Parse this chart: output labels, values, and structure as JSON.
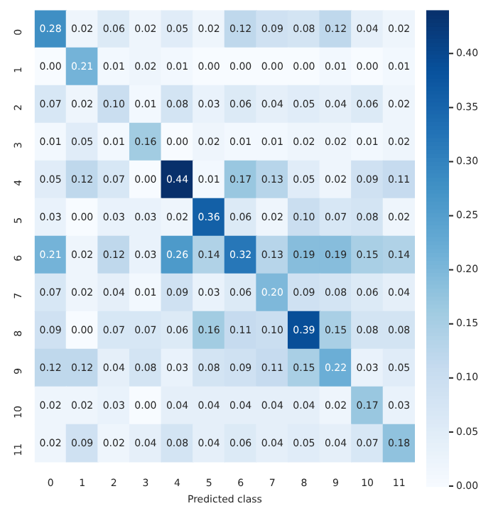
{
  "chart_data": {
    "type": "heatmap",
    "xlabel": "Predicted class",
    "categories": [
      "0",
      "1",
      "2",
      "3",
      "4",
      "5",
      "6",
      "7",
      "8",
      "9",
      "10",
      "11"
    ],
    "y_categories": [
      "0",
      "1",
      "2",
      "3",
      "4",
      "5",
      "6",
      "7",
      "8",
      "9",
      "10",
      "11"
    ],
    "cells": [
      [
        0.28,
        0.02,
        0.06,
        0.02,
        0.05,
        0.02,
        0.12,
        0.09,
        0.08,
        0.12,
        0.04,
        0.02
      ],
      [
        0.0,
        0.21,
        0.01,
        0.02,
        0.01,
        0.0,
        0.0,
        0.0,
        0.0,
        0.01,
        0.0,
        0.01
      ],
      [
        0.07,
        0.02,
        0.1,
        0.01,
        0.08,
        0.03,
        0.06,
        0.04,
        0.05,
        0.04,
        0.06,
        0.02
      ],
      [
        0.01,
        0.05,
        0.01,
        0.16,
        0.0,
        0.02,
        0.01,
        0.01,
        0.02,
        0.02,
        0.01,
        0.02
      ],
      [
        0.05,
        0.12,
        0.07,
        0.0,
        0.44,
        0.01,
        0.17,
        0.13,
        0.05,
        0.02,
        0.09,
        0.11
      ],
      [
        0.03,
        0.0,
        0.03,
        0.03,
        0.02,
        0.36,
        0.06,
        0.02,
        0.1,
        0.07,
        0.08,
        0.02
      ],
      [
        0.21,
        0.02,
        0.12,
        0.03,
        0.26,
        0.14,
        0.32,
        0.13,
        0.19,
        0.19,
        0.15,
        0.14
      ],
      [
        0.07,
        0.02,
        0.04,
        0.01,
        0.09,
        0.03,
        0.06,
        0.2,
        0.09,
        0.08,
        0.06,
        0.04
      ],
      [
        0.09,
        0.0,
        0.07,
        0.07,
        0.06,
        0.16,
        0.11,
        0.1,
        0.39,
        0.15,
        0.08,
        0.08
      ],
      [
        0.12,
        0.12,
        0.04,
        0.08,
        0.03,
        0.08,
        0.09,
        0.11,
        0.15,
        0.22,
        0.03,
        0.05
      ],
      [
        0.02,
        0.02,
        0.03,
        0.0,
        0.04,
        0.04,
        0.04,
        0.04,
        0.04,
        0.02,
        0.17,
        0.03
      ],
      [
        0.02,
        0.09,
        0.02,
        0.04,
        0.08,
        0.04,
        0.06,
        0.04,
        0.05,
        0.04,
        0.07,
        0.18
      ]
    ],
    "cell_labels": [
      [
        "0.28",
        "0.02",
        "0.06",
        "0.02",
        "0.05",
        "0.02",
        "0.12",
        "0.09",
        "0.08",
        "0.12",
        "0.04",
        "0.02"
      ],
      [
        "0.00",
        "0.21",
        "0.01",
        "0.02",
        "0.01",
        "0.00",
        "0.00",
        "0.00",
        "0.00",
        "0.01",
        "0.00",
        "0.01"
      ],
      [
        "0.07",
        "0.02",
        "0.10",
        "0.01",
        "0.08",
        "0.03",
        "0.06",
        "0.04",
        "0.05",
        "0.04",
        "0.06",
        "0.02"
      ],
      [
        "0.01",
        "0.05",
        "0.01",
        "0.16",
        "0.00",
        "0.02",
        "0.01",
        "0.01",
        "0.02",
        "0.02",
        "0.01",
        "0.02"
      ],
      [
        "0.05",
        "0.12",
        "0.07",
        "0.00",
        "0.44",
        "0.01",
        "0.17",
        "0.13",
        "0.05",
        "0.02",
        "0.09",
        "0.11"
      ],
      [
        "0.03",
        "0.00",
        "0.03",
        "0.03",
        "0.02",
        "0.36",
        "0.06",
        "0.02",
        "0.10",
        "0.07",
        "0.08",
        "0.02"
      ],
      [
        "0.21",
        "0.02",
        "0.12",
        "0.03",
        "0.26",
        "0.14",
        "0.32",
        "0.13",
        "0.19",
        "0.19",
        "0.15",
        "0.14"
      ],
      [
        "0.07",
        "0.02",
        "0.04",
        "0.01",
        "0.09",
        "0.03",
        "0.06",
        "0.20",
        "0.09",
        "0.08",
        "0.06",
        "0.04"
      ],
      [
        "0.09",
        "0.00",
        "0.07",
        "0.07",
        "0.06",
        "0.16",
        "0.11",
        "0.10",
        "0.39",
        "0.15",
        "0.08",
        "0.08"
      ],
      [
        "0.12",
        "0.12",
        "0.04",
        "0.08",
        "0.03",
        "0.08",
        "0.09",
        "0.11",
        "0.15",
        "0.22",
        "0.03",
        "0.05"
      ],
      [
        "0.02",
        "0.02",
        "0.03",
        "0.00",
        "0.04",
        "0.04",
        "0.04",
        "0.04",
        "0.04",
        "0.02",
        "0.17",
        "0.03"
      ],
      [
        "0.02",
        "0.09",
        "0.02",
        "0.04",
        "0.08",
        "0.04",
        "0.06",
        "0.04",
        "0.05",
        "0.04",
        "0.07",
        "0.18"
      ]
    ],
    "clim": [
      0,
      0.44
    ],
    "cticks": [
      {
        "value": 0,
        "label": "0.00"
      },
      {
        "value": 0.05,
        "label": "0.05"
      },
      {
        "value": 0.1,
        "label": "0.10"
      },
      {
        "value": 0.15,
        "label": "0.15"
      },
      {
        "value": 0.2,
        "label": "0.20"
      },
      {
        "value": 0.25,
        "label": "0.25"
      },
      {
        "value": 0.3,
        "label": "0.30"
      },
      {
        "value": 0.35,
        "label": "0.35"
      },
      {
        "value": 0.4,
        "label": "0.40"
      }
    ],
    "data_labels": true
  }
}
